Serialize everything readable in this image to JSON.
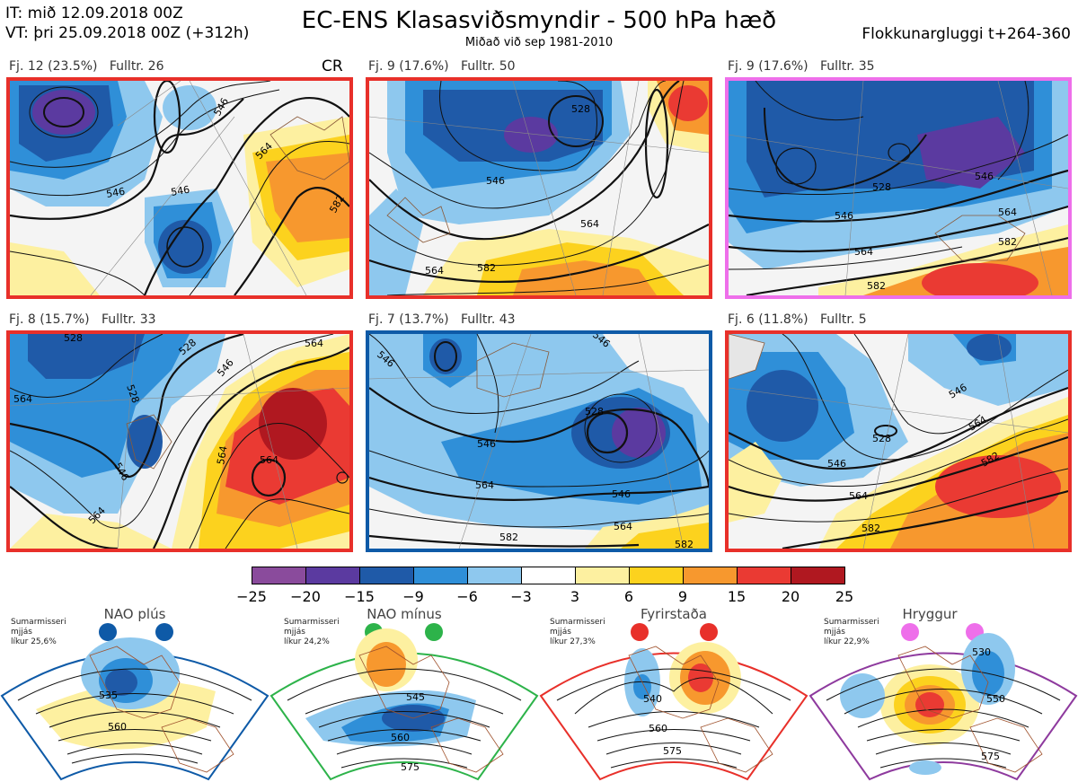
{
  "header": {
    "it_line": "IT: mið 12.09.2018 00Z",
    "vt_line": "VT: þri 25.09.2018 00Z  (+312h)",
    "title": "EC-ENS Klasasviðsmyndir - 500 hPa hæð",
    "subtitle": "Miðað við sep 1981-2010",
    "window": "Flokkunargluggi t+264-360"
  },
  "clusters": [
    {
      "label": "Fj. 12 (23.5%)",
      "member": "Fulltr. 26",
      "tag": "CR",
      "border": "#e8302a",
      "c1": "546",
      "c2": "564",
      "c3": "582"
    },
    {
      "label": "Fj. 9 (17.6%)",
      "member": "Fulltr. 50",
      "border": "#e8302a",
      "c1": "528",
      "c2": "546",
      "c3": "564",
      "c4": "582"
    },
    {
      "label": "Fj. 9 (17.6%)",
      "member": "Fulltr. 35",
      "border": "#ee6fea",
      "c1": "528",
      "c2": "546",
      "c3": "564",
      "c4": "582"
    },
    {
      "label": "Fj. 8 (15.7%)",
      "member": "Fulltr. 33",
      "border": "#e8302a",
      "c1": "528",
      "c2": "546",
      "c3": "564"
    },
    {
      "label": "Fj. 7 (13.7%)",
      "member": "Fulltr. 43",
      "border": "#0e5aa7",
      "c1": "528",
      "c2": "546",
      "c3": "564",
      "c4": "582"
    },
    {
      "label": "Fj. 6 (11.8%)",
      "member": "Fulltr. 5",
      "border": "#e8302a",
      "c1": "528",
      "c2": "546",
      "c3": "564",
      "c4": "582"
    }
  ],
  "colorbar": {
    "ticks": [
      "−25",
      "−20",
      "−15",
      "−9",
      "−6",
      "−3",
      "3",
      "6",
      "9",
      "15",
      "20",
      "25"
    ],
    "colors": [
      "#8a4b9c",
      "#5b3aa0",
      "#1f5aa8",
      "#2f8fd8",
      "#8ec8ee",
      "#ffffff",
      "#fdf0a0",
      "#fcd21e",
      "#f7982e",
      "#ea3a33",
      "#b01820"
    ]
  },
  "regimes": [
    {
      "name": "NAO plús",
      "note1": "Sumarmisseri",
      "note2": "mjjás",
      "note3": "líkur 25,6%",
      "color": "#0e5aa7",
      "c1": "535",
      "c2": "560"
    },
    {
      "name": "NAO mínus",
      "note1": "Sumarmisseri",
      "note2": "mjjás",
      "note3": "líkur 24,2%",
      "color": "#2db34a",
      "c1": "545",
      "c2": "560",
      "c3": "575"
    },
    {
      "name": "Fyrirstaða",
      "note1": "Sumarmisseri",
      "note2": "mjjás",
      "note3": "líkur 27,3%",
      "color": "#e8302a",
      "c1": "540",
      "c2": "560",
      "c3": "575"
    },
    {
      "name": "Hryggur",
      "note1": "Sumarmisseri",
      "note2": "mjjás",
      "note3": "líkur 22,9%",
      "color": "#8e3a9e",
      "dot": "#ee6fea",
      "c1": "530",
      "c2": "550",
      "c3": "575"
    }
  ]
}
